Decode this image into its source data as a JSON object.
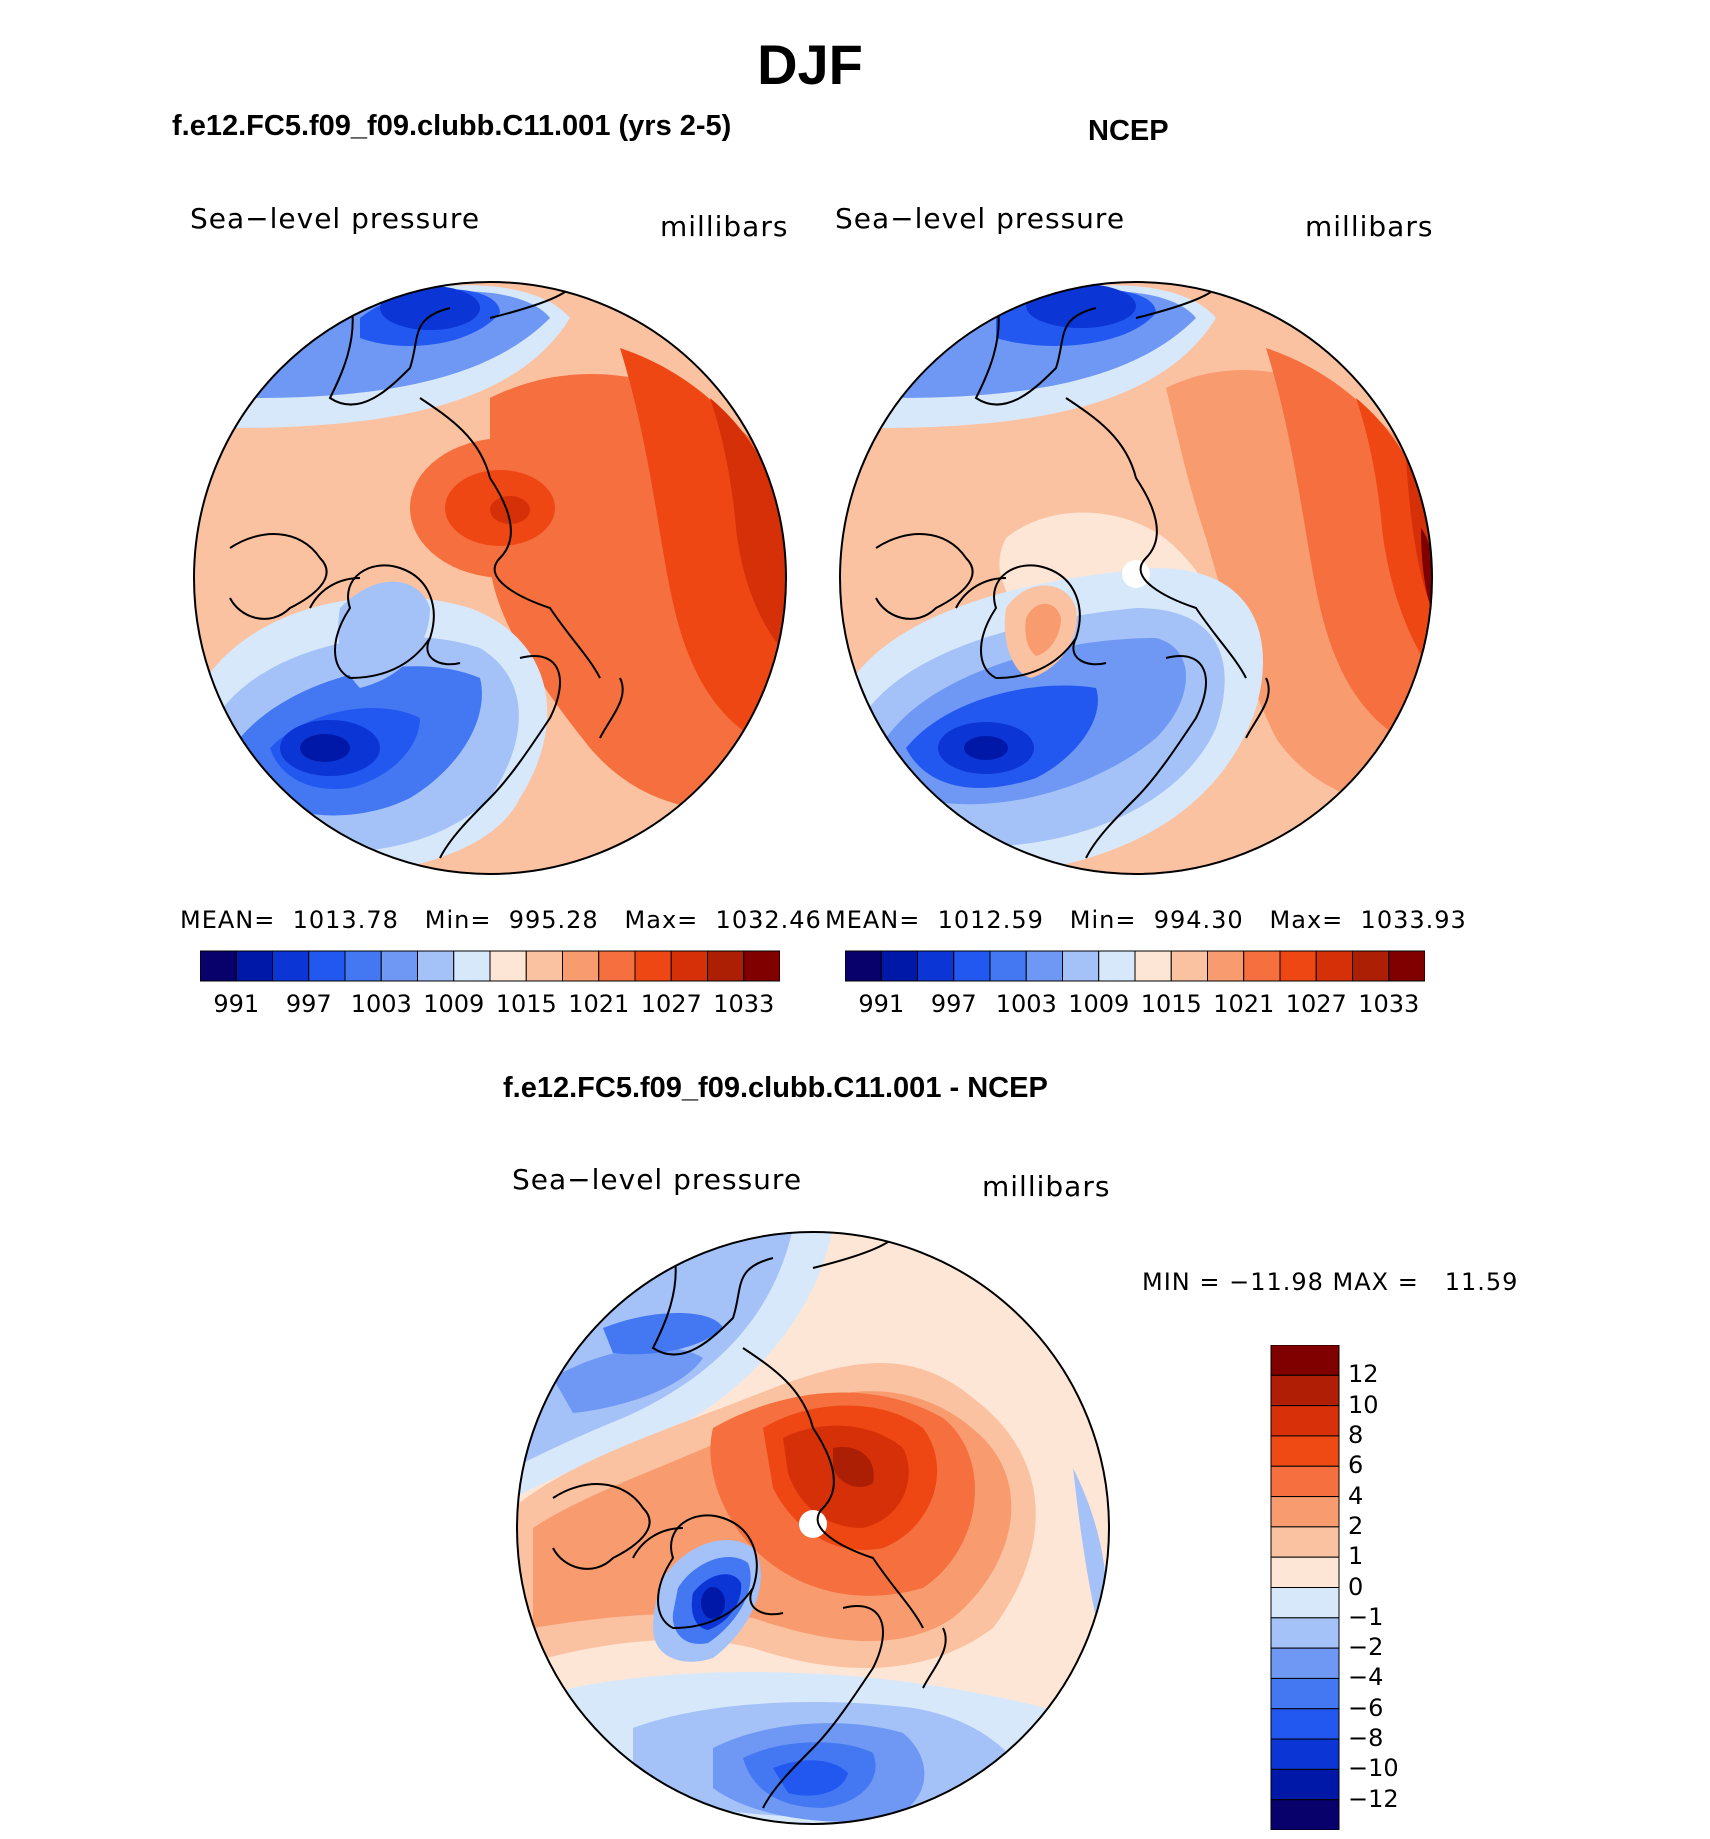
{
  "figure": {
    "title": "DJF"
  },
  "chart_data": [
    {
      "type": "heatmap",
      "title": "f.e12.FC5.f09_f09.clubb.C11.001 (yrs 2-5)",
      "variable": "Sea−level pressure",
      "units": "millibars",
      "projection": "north polar stereographic",
      "stats": {
        "mean": "1013.78",
        "min": "995.28",
        "max": "1032.46"
      },
      "stats_text": "MEAN=  1013.78   Min=  995.28   Max=  1032.46",
      "levels": [
        991,
        994,
        997,
        1000,
        1003,
        1006,
        1009,
        1012,
        1015,
        1018,
        1021,
        1024,
        1027,
        1030,
        1033
      ],
      "colorbar_labels": [
        "991",
        "997",
        "1003",
        "1009",
        "1015",
        "1021",
        "1027",
        "1033"
      ],
      "colors": [
        "#08006b",
        "#0018a8",
        "#0c35d6",
        "#2358f0",
        "#4477f2",
        "#6e98f4",
        "#a4c1f8",
        "#d7e8fb",
        "#fde6d6",
        "#fbc2a2",
        "#f89c70",
        "#f5703e",
        "#ee4714",
        "#d63008",
        "#ad1f04",
        "#800000"
      ]
    },
    {
      "type": "heatmap",
      "title": "NCEP",
      "variable": "Sea−level pressure",
      "units": "millibars",
      "projection": "north polar stereographic",
      "stats": {
        "mean": "1012.59",
        "min": "994.30",
        "max": "1033.93"
      },
      "stats_text": "MEAN=  1012.59   Min=  994.30   Max=  1033.93",
      "levels": [
        991,
        994,
        997,
        1000,
        1003,
        1006,
        1009,
        1012,
        1015,
        1018,
        1021,
        1024,
        1027,
        1030,
        1033
      ],
      "colorbar_labels": [
        "991",
        "997",
        "1003",
        "1009",
        "1015",
        "1021",
        "1027",
        "1033"
      ],
      "colors": [
        "#08006b",
        "#0018a8",
        "#0c35d6",
        "#2358f0",
        "#4477f2",
        "#6e98f4",
        "#a4c1f8",
        "#d7e8fb",
        "#fde6d6",
        "#fbc2a2",
        "#f89c70",
        "#f5703e",
        "#ee4714",
        "#d63008",
        "#ad1f04",
        "#800000"
      ]
    },
    {
      "type": "heatmap",
      "title": "f.e12.FC5.f09_f09.clubb.C11.001 - NCEP",
      "variable": "Sea−level pressure",
      "units": "millibars",
      "projection": "north polar stereographic",
      "stats": {
        "min": "−11.98",
        "max": "11.59"
      },
      "stats_text": "MIN = −11.98 MAX =   11.59",
      "levels": [
        -12,
        -10,
        -8,
        -6,
        -4,
        -2,
        -1,
        0,
        1,
        2,
        4,
        6,
        8,
        10,
        12
      ],
      "colorbar_labels": [
        "12",
        "10",
        "8",
        "6",
        "4",
        "2",
        "1",
        "0",
        "−1",
        "−2",
        "−4",
        "−6",
        "−8",
        "−10",
        "−12"
      ],
      "colors": [
        "#800000",
        "#b01e05",
        "#d83008",
        "#f04a14",
        "#f5703e",
        "#f89c70",
        "#fbc2a2",
        "#fde6d6",
        "#d7e8fb",
        "#a4c1f8",
        "#6e98f4",
        "#4477f2",
        "#2358f0",
        "#0c35d6",
        "#0018a8",
        "#08006b"
      ]
    }
  ]
}
